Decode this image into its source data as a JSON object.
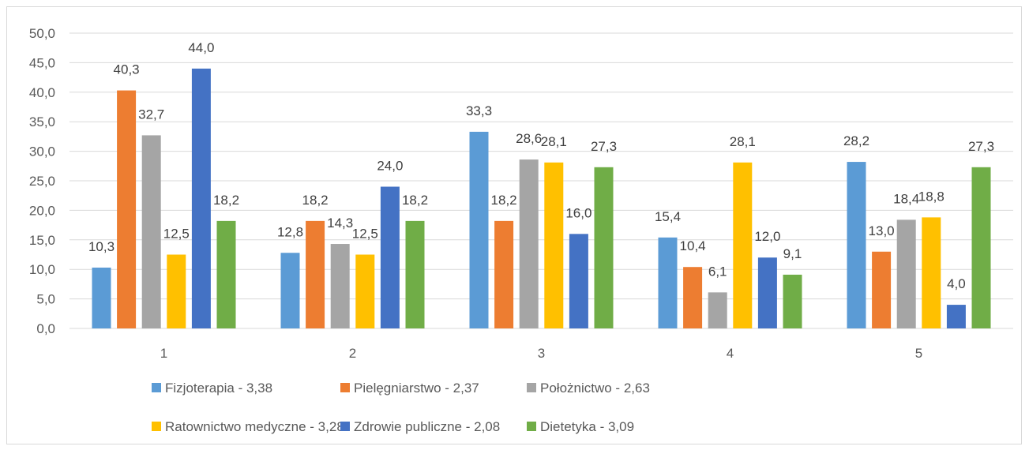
{
  "chart_data": {
    "type": "bar",
    "categories": [
      "1",
      "2",
      "3",
      "4",
      "5"
    ],
    "ylim": [
      0,
      50
    ],
    "yticks": [
      "0,0",
      "5,0",
      "10,0",
      "15,0",
      "20,0",
      "25,0",
      "30,0",
      "35,0",
      "40,0",
      "45,0",
      "50,0"
    ],
    "grid": true,
    "legend_position": "bottom",
    "series": [
      {
        "name": "Fizjoterapia - 3,38",
        "color": "#5b9bd5",
        "values": [
          10.3,
          12.8,
          33.3,
          15.4,
          28.2
        ],
        "labels": [
          "10,3",
          "12,8",
          "33,3",
          "15,4",
          "28,2"
        ]
      },
      {
        "name": "Pielęgniarstwo - 2,37",
        "color": "#ed7d31",
        "values": [
          40.3,
          18.2,
          18.2,
          10.4,
          13.0
        ],
        "labels": [
          "40,3",
          "18,2",
          "18,2",
          "10,4",
          "13,0"
        ]
      },
      {
        "name": "Położnictwo - 2,63",
        "color": "#a5a5a5",
        "values": [
          32.7,
          14.3,
          28.6,
          6.1,
          18.4
        ],
        "labels": [
          "32,7",
          "14,3",
          "28,6",
          "6,1",
          "18,4"
        ]
      },
      {
        "name": "Ratownictwo medyczne - 3,28",
        "color": "#ffc000",
        "values": [
          12.5,
          12.5,
          28.1,
          28.1,
          18.8
        ],
        "labels": [
          "12,5",
          "12,5",
          "28,1",
          "28,1",
          "18,8"
        ]
      },
      {
        "name": "Zdrowie publiczne - 2,08",
        "color": "#4472c4",
        "values": [
          44.0,
          24.0,
          16.0,
          12.0,
          4.0
        ],
        "labels": [
          "44,0",
          "24,0",
          "16,0",
          "12,0",
          "4,0"
        ]
      },
      {
        "name": "Dietetyka - 3,09",
        "color": "#70ad47",
        "values": [
          18.2,
          18.2,
          27.3,
          9.1,
          27.3
        ],
        "labels": [
          "18,2",
          "18,2",
          "27,3",
          "9,1",
          "27,3"
        ]
      }
    ]
  }
}
